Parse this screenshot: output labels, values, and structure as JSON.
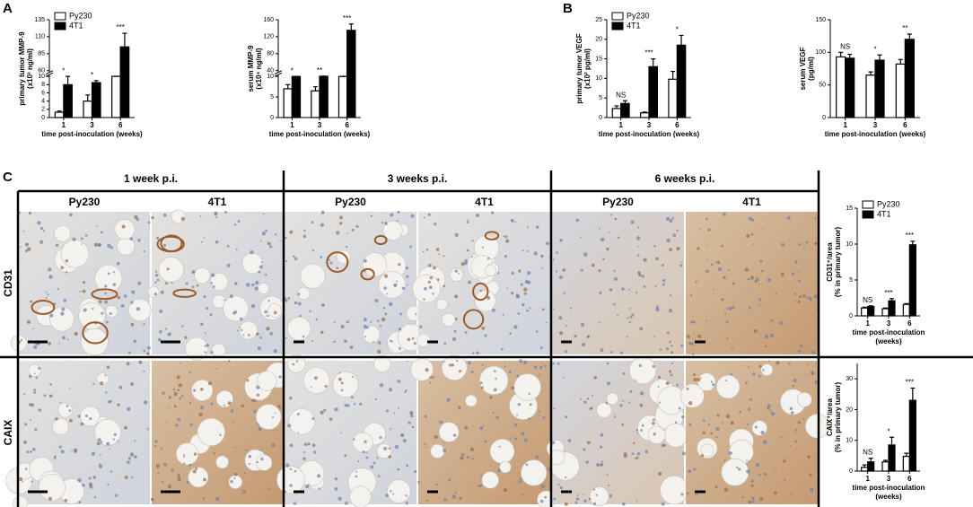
{
  "panel_labels": [
    "A",
    "B",
    "C"
  ],
  "histology": {
    "columns": [
      {
        "title": "1 week p.i.",
        "groups": [
          "Py230",
          "4T1"
        ]
      },
      {
        "title": "3 weeks p.i.",
        "groups": [
          "Py230",
          "4T1"
        ]
      },
      {
        "title": "6 weeks p.i.",
        "groups": [
          "Py230",
          "4T1"
        ]
      }
    ],
    "rows": [
      "CD31",
      "CAIX"
    ]
  },
  "chart_data": [
    {
      "type": "bar",
      "ylabel": [
        "primary tumor MMP-9",
        "(x10³ ng/ml)"
      ],
      "xlabel": [
        "time post-inoculation (weeks)"
      ],
      "categories": [
        "1",
        "3",
        "6"
      ],
      "legend": true,
      "series": [
        {
          "name": "Py230",
          "color": "#ffffff",
          "values": [
            1.3,
            4,
            11
          ],
          "errors": [
            0.3,
            1.5,
            0.5
          ]
        },
        {
          "name": "4T1",
          "color": "#000000",
          "values": [
            8,
            8.5,
            95
          ],
          "errors": [
            2.5,
            0.5,
            20
          ]
        }
      ],
      "significance": [
        "*",
        "*",
        "***"
      ],
      "ylim": [
        0,
        135
      ],
      "ybreak": [
        10,
        60
      ],
      "yticks": [
        0,
        2,
        4,
        6,
        8,
        10,
        60,
        85,
        110,
        135
      ]
    },
    {
      "type": "bar",
      "ylabel": [
        "serum MMP-9",
        "(x10⁴ ng/ml)"
      ],
      "xlabel": [
        "time post-inoculation (weeks)"
      ],
      "categories": [
        "1",
        "3",
        "6"
      ],
      "legend": false,
      "series": [
        {
          "name": "Py230",
          "color": "#ffffff",
          "values": [
            7,
            6.5,
            10
          ],
          "errors": [
            1,
            1,
            0.3
          ]
        },
        {
          "name": "4T1",
          "color": "#000000",
          "values": [
            10,
            11,
            135
          ],
          "errors": [
            0.3,
            0.5,
            15
          ]
        }
      ],
      "significance": [
        "*",
        "**",
        "***"
      ],
      "ylim": [
        0,
        160
      ],
      "ybreak": [
        10,
        40
      ],
      "yticks": [
        0,
        5,
        10,
        40,
        80,
        120,
        160
      ]
    },
    {
      "type": "bar",
      "ylabel": [
        "primary tumor VEGF",
        "(x10² pg/ml)"
      ],
      "xlabel": [
        "time post-inoculation (weeks)"
      ],
      "categories": [
        "1",
        "3",
        "6"
      ],
      "legend": true,
      "series": [
        {
          "name": "Py230",
          "color": "#ffffff",
          "values": [
            2.3,
            1.2,
            9.8
          ],
          "errors": [
            0.7,
            0.2,
            2
          ]
        },
        {
          "name": "4T1",
          "color": "#000000",
          "values": [
            3.6,
            13,
            18.5
          ],
          "errors": [
            0.7,
            2,
            2.5
          ]
        }
      ],
      "significance": [
        "NS",
        "***",
        "*"
      ],
      "ylim": [
        0,
        25
      ],
      "yticks": [
        0,
        5,
        10,
        15,
        20,
        25
      ]
    },
    {
      "type": "bar",
      "ylabel": [
        "serum VEGF",
        "(pg/ml)"
      ],
      "xlabel": [
        "time post-inoculation (weeks)"
      ],
      "categories": [
        "1",
        "3",
        "6"
      ],
      "legend": false,
      "series": [
        {
          "name": "Py230",
          "color": "#ffffff",
          "values": [
            93,
            65,
            82
          ],
          "errors": [
            7,
            5,
            7
          ]
        },
        {
          "name": "4T1",
          "color": "#000000",
          "values": [
            91,
            88,
            120
          ],
          "errors": [
            6,
            8,
            8
          ]
        }
      ],
      "significance": [
        "NS",
        "*",
        "**"
      ],
      "ylim": [
        0,
        150
      ],
      "yticks": [
        0,
        50,
        100,
        150
      ]
    },
    {
      "type": "bar",
      "ylabel": [
        "CD31⁺/area",
        "(% in primary tumor)"
      ],
      "xlabel": [
        "time post-inoculation",
        "(weeks)"
      ],
      "categories": [
        "1",
        "3",
        "6"
      ],
      "legend": true,
      "series": [
        {
          "name": "Py230",
          "color": "#ffffff",
          "values": [
            1.1,
            1.0,
            1.6
          ],
          "errors": [
            0.1,
            0.1,
            0.1
          ]
        },
        {
          "name": "4T1",
          "color": "#000000",
          "values": [
            1.3,
            2.1,
            9.9
          ],
          "errors": [
            0.1,
            0.3,
            0.5
          ]
        }
      ],
      "significance": [
        "NS",
        "***",
        "***"
      ],
      "ylim": [
        0,
        15
      ],
      "yticks": [
        0,
        5,
        10,
        15
      ]
    },
    {
      "type": "bar",
      "ylabel": [
        "CAIX⁺/area",
        "(% in primary tumor)"
      ],
      "xlabel": [
        "time post-inoculation",
        "(weeks)"
      ],
      "categories": [
        "1",
        "3",
        "6"
      ],
      "legend": false,
      "series": [
        {
          "name": "Py230",
          "color": "#ffffff",
          "values": [
            1.2,
            3,
            4.8
          ],
          "errors": [
            0.8,
            0.5,
            1
          ]
        },
        {
          "name": "4T1",
          "color": "#000000",
          "values": [
            3,
            8.5,
            23
          ],
          "errors": [
            1.2,
            2.5,
            4
          ]
        }
      ],
      "significance": [
        "NS",
        "*",
        "***"
      ],
      "ylim": [
        0,
        35
      ],
      "yticks": [
        0,
        10,
        20,
        30
      ]
    }
  ]
}
